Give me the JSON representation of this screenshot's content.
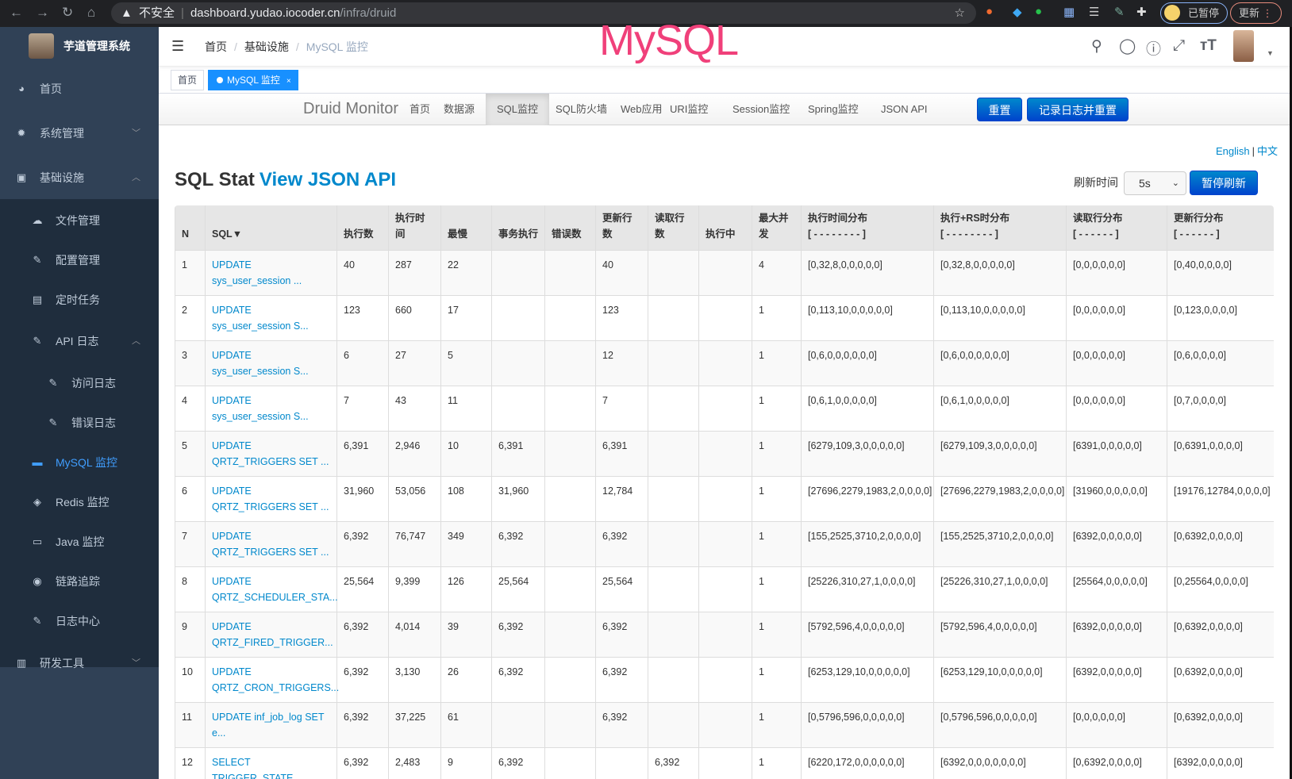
{
  "browser": {
    "security": "不安全",
    "url_host": "dashboard.yudao.iocoder.cn",
    "url_path": "/infra/druid",
    "paused_label": "已暂停",
    "update_label": "更新"
  },
  "sidebar": {
    "app_title": "芋道管理系统",
    "items": [
      {
        "label": "首页",
        "icon": "dashboard-icon"
      },
      {
        "label": "系统管理",
        "icon": "gear-icon"
      },
      {
        "label": "基础设施",
        "icon": "monitor-icon"
      },
      {
        "label": "文件管理",
        "icon": "upload-icon"
      },
      {
        "label": "配置管理",
        "icon": "edit-icon"
      },
      {
        "label": "定时任务",
        "icon": "job-icon"
      },
      {
        "label": "API 日志",
        "icon": "log-icon"
      },
      {
        "label": "访问日志",
        "icon": "log-icon"
      },
      {
        "label": "错误日志",
        "icon": "log-icon"
      },
      {
        "label": "MySQL 监控",
        "icon": "chart-icon"
      },
      {
        "label": "Redis 监控",
        "icon": "redis-icon"
      },
      {
        "label": "Java 监控",
        "icon": "server-icon"
      },
      {
        "label": "链路追踪",
        "icon": "eye-icon"
      },
      {
        "label": "日志中心",
        "icon": "log-icon"
      },
      {
        "label": "研发工具",
        "icon": "toolbox-icon"
      }
    ]
  },
  "header": {
    "breadcrumb": [
      "首页",
      "基础设施",
      "MySQL 监控"
    ],
    "overlay_title": "MySQL"
  },
  "tags": {
    "home": "首页",
    "active": "MySQL 监控"
  },
  "druid": {
    "brand": "Druid Monitor",
    "nav": [
      "首页",
      "数据源",
      "SQL监控",
      "SQL防火墙",
      "Web应用",
      "URI监控",
      "Session监控",
      "Spring监控",
      "JSON API"
    ],
    "active_nav": "SQL监控",
    "reset_label": "重置",
    "log_reset_label": "记录日志并重置",
    "lang_en": "English",
    "lang_zh": "中文",
    "title": "SQL Stat",
    "title_link": "View JSON API",
    "refresh_label": "刷新时间",
    "refresh_value": "5s",
    "pause_label": "暂停刷新"
  },
  "table": {
    "headers": [
      "N",
      "SQL▼",
      "执行数",
      "执行时间",
      "最慢",
      "事务执行",
      "错误数",
      "更新行数",
      "读取行数",
      "执行中",
      "最大并发",
      "执行时间分布\n[ - - - - - - - - ]",
      "执行+RS时分布\n[ - - - - - - - - ]",
      "读取行分布\n[ - - - - - - ]",
      "更新行分布\n[ - - - - - - ]"
    ],
    "rows": [
      [
        "1",
        "UPDATE sys_user_session ...",
        "40",
        "287",
        "22",
        "",
        "",
        "40",
        "",
        "",
        "4",
        "[0,32,8,0,0,0,0,0]",
        "[0,32,8,0,0,0,0,0]",
        "[0,0,0,0,0,0]",
        "[0,40,0,0,0,0]"
      ],
      [
        "2",
        "UPDATE sys_user_session S...",
        "123",
        "660",
        "17",
        "",
        "",
        "123",
        "",
        "",
        "1",
        "[0,113,10,0,0,0,0,0]",
        "[0,113,10,0,0,0,0,0]",
        "[0,0,0,0,0,0]",
        "[0,123,0,0,0,0]"
      ],
      [
        "3",
        "UPDATE sys_user_session S...",
        "6",
        "27",
        "5",
        "",
        "",
        "12",
        "",
        "",
        "1",
        "[0,6,0,0,0,0,0,0]",
        "[0,6,0,0,0,0,0,0]",
        "[0,0,0,0,0,0]",
        "[0,6,0,0,0,0]"
      ],
      [
        "4",
        "UPDATE sys_user_session S...",
        "7",
        "43",
        "11",
        "",
        "",
        "7",
        "",
        "",
        "1",
        "[0,6,1,0,0,0,0,0]",
        "[0,6,1,0,0,0,0,0]",
        "[0,0,0,0,0,0]",
        "[0,7,0,0,0,0]"
      ],
      [
        "5",
        "UPDATE QRTZ_TRIGGERS SET ...",
        "6,391",
        "2,946",
        "10",
        "6,391",
        "",
        "6,391",
        "",
        "",
        "1",
        "[6279,109,3,0,0,0,0,0]",
        "[6279,109,3,0,0,0,0,0]",
        "[6391,0,0,0,0,0]",
        "[0,6391,0,0,0,0]"
      ],
      [
        "6",
        "UPDATE QRTZ_TRIGGERS SET ...",
        "31,960",
        "53,056",
        "108",
        "31,960",
        "",
        "12,784",
        "",
        "",
        "1",
        "[27696,2279,1983,2,0,0,0,0]",
        "[27696,2279,1983,2,0,0,0,0]",
        "[31960,0,0,0,0,0]",
        "[19176,12784,0,0,0,0]"
      ],
      [
        "7",
        "UPDATE QRTZ_TRIGGERS SET ...",
        "6,392",
        "76,747",
        "349",
        "6,392",
        "",
        "6,392",
        "",
        "",
        "1",
        "[155,2525,3710,2,0,0,0,0]",
        "[155,2525,3710,2,0,0,0,0]",
        "[6392,0,0,0,0,0]",
        "[0,6392,0,0,0,0]"
      ],
      [
        "8",
        "UPDATE QRTZ_SCHEDULER_STA...",
        "25,564",
        "9,399",
        "126",
        "25,564",
        "",
        "25,564",
        "",
        "",
        "1",
        "[25226,310,27,1,0,0,0,0]",
        "[25226,310,27,1,0,0,0,0]",
        "[25564,0,0,0,0,0]",
        "[0,25564,0,0,0,0]"
      ],
      [
        "9",
        "UPDATE QRTZ_FIRED_TRIGGER...",
        "6,392",
        "4,014",
        "39",
        "6,392",
        "",
        "6,392",
        "",
        "",
        "1",
        "[5792,596,4,0,0,0,0,0]",
        "[5792,596,4,0,0,0,0,0]",
        "[6392,0,0,0,0,0]",
        "[0,6392,0,0,0,0]"
      ],
      [
        "10",
        "UPDATE QRTZ_CRON_TRIGGERS...",
        "6,392",
        "3,130",
        "26",
        "6,392",
        "",
        "6,392",
        "",
        "",
        "1",
        "[6253,129,10,0,0,0,0,0]",
        "[6253,129,10,0,0,0,0,0]",
        "[6392,0,0,0,0,0]",
        "[0,6392,0,0,0,0]"
      ],
      [
        "11",
        "UPDATE inf_job_log SET e...",
        "6,392",
        "37,225",
        "61",
        "",
        "",
        "6,392",
        "",
        "",
        "1",
        "[0,5796,596,0,0,0,0,0]",
        "[0,5796,596,0,0,0,0,0]",
        "[0,0,0,0,0,0]",
        "[0,6392,0,0,0,0]"
      ],
      [
        "12",
        "SELECT TRIGGER_STATE",
        "6,392",
        "2,483",
        "9",
        "6,392",
        "",
        "",
        "6,392",
        "",
        "1",
        "[6220,172,0,0,0,0,0,0]",
        "[6392,0,0,0,0,0,0,0]",
        "[0,6392,0,0,0,0]",
        "[6392,0,0,0,0,0]"
      ]
    ]
  },
  "colors": {
    "sidebar": "#304156",
    "submenu": "#1f2d3d",
    "accent": "#409eff",
    "link": "#0088cc",
    "overlay": "#f0407a"
  }
}
